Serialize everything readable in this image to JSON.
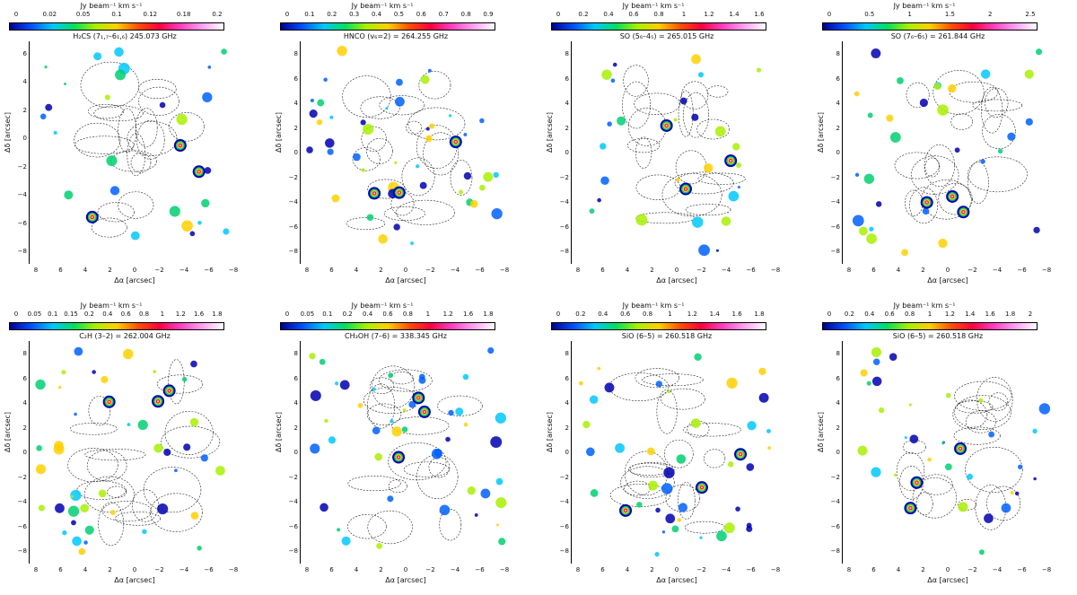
{
  "figure": {
    "panels": [
      {
        "id": "top-1",
        "colorbar_title": "Jy beam⁻¹ km s⁻¹",
        "colorbar_ticks": [
          "0",
          "0.02",
          "0.05",
          "0.1",
          "0.12",
          "0.18",
          "0.2"
        ],
        "line_label": "H₂CS (7₁,₇–6₁,₆) 245.073 GHz",
        "xlabel": "Δα [arcsec]",
        "ylabel": "Δδ [arcsec]",
        "xticks": [
          "8",
          "6",
          "4",
          "2",
          "0",
          "−2",
          "−4",
          "−6",
          "−8"
        ],
        "yticks": [
          "6",
          "4",
          "2",
          "0",
          "−2",
          "−4",
          "−6",
          "−8"
        ]
      },
      {
        "id": "top-2",
        "colorbar_title": "Jy beam⁻¹ km s⁻¹",
        "colorbar_ticks": [
          "0",
          "0.1",
          "0.2",
          "0.3",
          "0.4",
          "0.5",
          "0.6",
          "0.7",
          "0.8",
          "0.9"
        ],
        "line_label": "HNCO (v₆=2) = 264.255 GHz",
        "xlabel": "Δα [arcsec]",
        "ylabel": "Δδ [arcsec]",
        "xticks": [
          "8",
          "6",
          "4",
          "2",
          "0",
          "−2",
          "−4",
          "−6",
          "−8"
        ],
        "yticks": [
          "8",
          "6",
          "4",
          "2",
          "0",
          "−2",
          "−4",
          "−6",
          "−8"
        ]
      },
      {
        "id": "top-3",
        "colorbar_title": "Jy beam⁻¹ km s⁻¹",
        "colorbar_ticks": [
          "0",
          "0.2",
          "0.4",
          "0.6",
          "0.8",
          "1",
          "1.2",
          "1.4",
          "1.6"
        ],
        "line_label": "SO (5₆–4₅) = 265.015 GHz",
        "xlabel": "Δα [arcsec]",
        "ylabel": "Δδ [arcsec]",
        "xticks": [
          "8",
          "6",
          "4",
          "2",
          "0",
          "−2",
          "−4",
          "−6",
          "−8"
        ],
        "yticks": [
          "8",
          "6",
          "4",
          "2",
          "0",
          "−2",
          "−4",
          "−6",
          "−8"
        ]
      },
      {
        "id": "top-4",
        "colorbar_title": "Jy beam⁻¹ km s⁻¹",
        "colorbar_ticks": [
          "0",
          "0.5",
          "1",
          "1.5",
          "2",
          "2.5"
        ],
        "line_label": "SO (7₆–6₅) = 261.844 GHz",
        "xlabel": "Δα [arcsec]",
        "ylabel": "Δδ [arcsec]",
        "xticks": [
          "8",
          "6",
          "4",
          "2",
          "0",
          "−2",
          "−4",
          "−6",
          "−8"
        ],
        "yticks": [
          "8",
          "6",
          "4",
          "2",
          "0",
          "−2",
          "−4",
          "−6",
          "−8"
        ]
      },
      {
        "id": "bottom-1",
        "colorbar_title": "Jy beam⁻¹ km s⁻¹",
        "colorbar_ticks": [
          "0",
          "0.05",
          "0.1",
          "0.15",
          "0.2",
          "0.4",
          "0.6",
          "0.8",
          "1",
          "1.2",
          "1.6",
          "1.8"
        ],
        "line_label": "C₂H (3–2) = 262.004 GHz",
        "xlabel": "Δα [arcsec]",
        "ylabel": "Δδ [arcsec]",
        "xticks": [
          "8",
          "6",
          "4",
          "2",
          "0",
          "−2",
          "−4",
          "−6",
          "−8"
        ],
        "yticks": [
          "8",
          "6",
          "4",
          "2",
          "0",
          "−2",
          "−4",
          "−6",
          "−8"
        ]
      },
      {
        "id": "bottom-2",
        "colorbar_title": "Jy beam⁻¹ km s⁻¹",
        "colorbar_ticks": [
          "0",
          "0.05",
          "0.1",
          "0.2",
          "0.4",
          "0.6",
          "0.8",
          "1",
          "1.2",
          "1.6",
          "1.8"
        ],
        "line_label": "CH₃OH (7–6) = 338.345 GHz",
        "xlabel": "Δα [arcsec]",
        "ylabel": "Δδ [arcsec]",
        "xticks": [
          "8",
          "6",
          "4",
          "2",
          "0",
          "−2",
          "−4",
          "−6",
          "−8"
        ],
        "yticks": [
          "8",
          "6",
          "4",
          "2",
          "0",
          "−2",
          "−4",
          "−6",
          "−8"
        ]
      },
      {
        "id": "bottom-3",
        "colorbar_title": "Jy beam⁻¹ km s⁻¹",
        "colorbar_ticks": [
          "0",
          "0.2",
          "0.4",
          "0.6",
          "0.8",
          "1",
          "1.2",
          "1.4",
          "1.6",
          "1.8"
        ],
        "line_label": "SiO (6–5) = 260.518 GHz",
        "xlabel": "Δα [arcsec]",
        "ylabel": "Δδ [arcsec]",
        "xticks": [
          "8",
          "6",
          "4",
          "2",
          "0",
          "−2",
          "−4",
          "−6",
          "−8"
        ],
        "yticks": [
          "8",
          "6",
          "4",
          "2",
          "0",
          "−2",
          "−4",
          "−6",
          "−8"
        ]
      },
      {
        "id": "bottom-4",
        "colorbar_title": "Jy beam⁻¹ km s⁻¹",
        "colorbar_ticks": [
          "0",
          "0.2",
          "0.4",
          "0.6",
          "0.8",
          "1",
          "1.2",
          "1.4",
          "1.6",
          "1.8",
          "2"
        ],
        "line_label": "SiO (6–5) = 260.518 GHz",
        "xlabel": "Δα [arcsec]",
        "ylabel": "Δδ [arcsec]",
        "xticks": [
          "8",
          "6",
          "4",
          "2",
          "0",
          "−2",
          "−4",
          "−6",
          "−8"
        ],
        "yticks": [
          "8",
          "6",
          "4",
          "2",
          "0",
          "−2",
          "−4",
          "−6",
          "−8"
        ]
      }
    ]
  }
}
